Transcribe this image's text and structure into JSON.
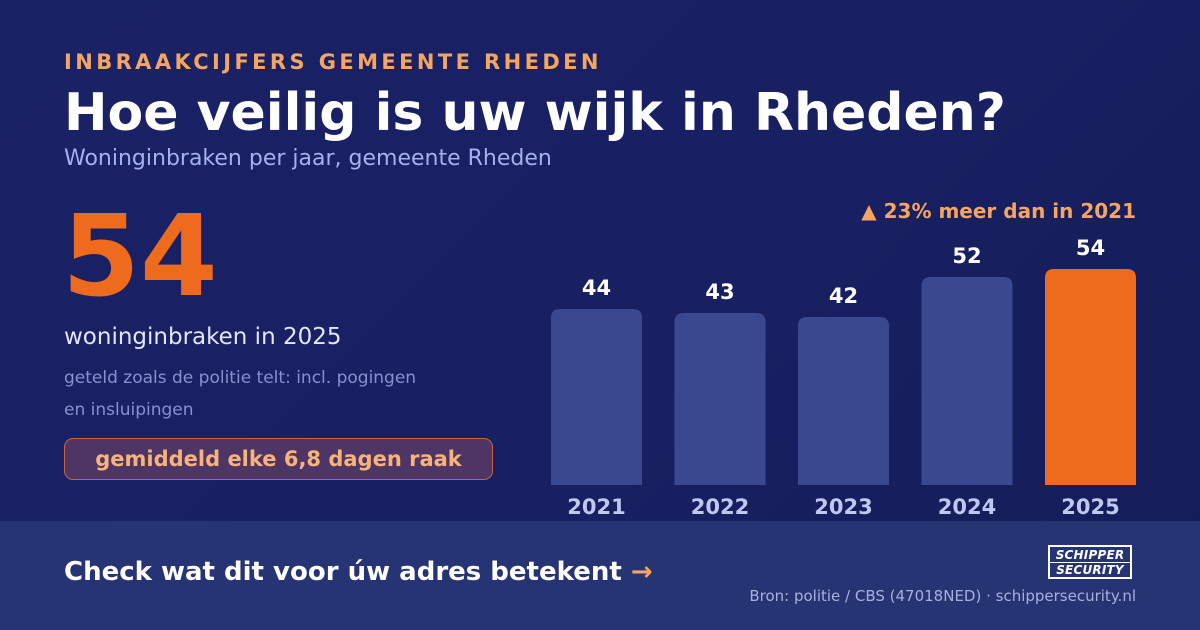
{
  "header": {
    "eyebrow": "INBRAAKCIJFERS GEMEENTE RHEDEN",
    "title": "Hoe veilig is uw wijk in Rheden?",
    "subtitle": "Woninginbraken per jaar, gemeente Rheden"
  },
  "stat": {
    "value": "54",
    "label": "woninginbraken in 2025",
    "note": "geteld zoals de politie telt: incl. pogingen en insluipingen",
    "callout": "gemiddeld elke 6,8 dagen raak"
  },
  "chart_data": {
    "type": "bar",
    "categories": [
      "2021",
      "2022",
      "2023",
      "2024",
      "2025"
    ],
    "values": [
      44,
      43,
      42,
      52,
      54
    ],
    "highlight_index": 4,
    "annotation": "▲ 23% meer dan in 2021",
    "ylim": [
      0,
      60
    ],
    "grid": false,
    "colors": {
      "bar": "#3a4890",
      "highlight": "#ee6a1d"
    }
  },
  "footer": {
    "cta_text": "Check wat dit voor úw adres betekent",
    "cta_arrow": "→",
    "source": "Bron: politie / CBS (47018NED) · schippersecurity.nl",
    "logo_line1": "SCHIPPER",
    "logo_line2": "SECURITY"
  }
}
